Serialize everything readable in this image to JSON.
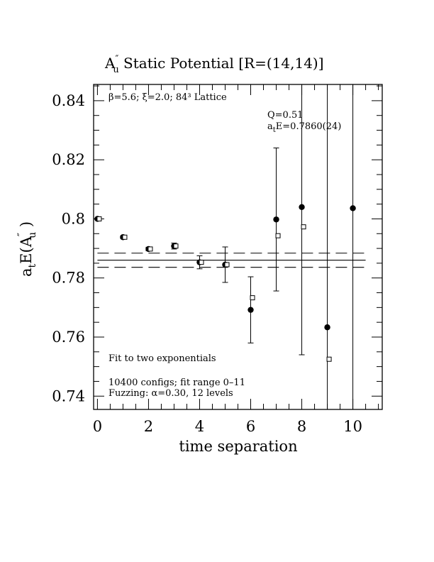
{
  "chart_data": {
    "type": "scatter",
    "title": {
      "base": "A",
      "sup": "″",
      "sub": "u",
      "rest": "  Static Potential [R=(14,14)]"
    },
    "xlabel": "time separation",
    "ylabel": {
      "pre": "a",
      "pre_sub": "t",
      "mid": "E(A",
      "sup": "″",
      "sub": "u",
      "post": " )"
    },
    "xlim": [
      -0.15,
      11.15
    ],
    "ylim": [
      0.7355,
      0.8455
    ],
    "x_ticks": [
      0,
      2,
      4,
      6,
      8,
      10
    ],
    "x_tick_labels": [
      "0",
      "2",
      "4",
      "6",
      "8",
      "10"
    ],
    "y_ticks": [
      0.74,
      0.76,
      0.78,
      0.8,
      0.82,
      0.84
    ],
    "y_tick_labels": [
      "0.74",
      "0.76",
      "0.78",
      "0.8",
      "0.82",
      "0.84"
    ],
    "annotations": {
      "lattice": "β=5.6; ξ=2.0; 84³ Lattice",
      "q_value": "Q=0.51",
      "energy": {
        "pre": "a",
        "sub": "t",
        "post": "E=0.7860(24)"
      },
      "fit_method": "Fit to two exponentials",
      "configs": "10400 configs; fit range 0–11",
      "fuzzing": "Fuzzing: α=0.30, 12 levels"
    },
    "fit": {
      "value": 0.786,
      "error": 0.0024,
      "x_range": [
        0,
        10.5
      ]
    },
    "series": [
      {
        "marker": "filled-circle",
        "points": [
          {
            "x": 0,
            "y": 0.8,
            "err": 0.0002
          },
          {
            "x": 1,
            "y": 0.7938,
            "err": 0.0004
          },
          {
            "x": 2,
            "y": 0.7898,
            "err": 0.0006
          },
          {
            "x": 3,
            "y": 0.7908,
            "err": 0.001
          },
          {
            "x": 4,
            "y": 0.7853,
            "err": 0.0022
          },
          {
            "x": 5,
            "y": 0.7845,
            "err": 0.006
          },
          {
            "x": 6,
            "y": 0.7692,
            "err": 0.0112
          },
          {
            "x": 7,
            "y": 0.7998,
            "err": 0.0242
          },
          {
            "x": 8,
            "y": 0.804,
            "err": 0.05
          },
          {
            "x": 9,
            "y": 0.7633,
            "err": 0.1
          },
          {
            "x": 10,
            "y": 0.8036,
            "err": 0.1
          }
        ]
      },
      {
        "marker": "open-square",
        "points": [
          {
            "x": 0.07,
            "y": 0.8
          },
          {
            "x": 1.07,
            "y": 0.7938
          },
          {
            "x": 2.07,
            "y": 0.7898
          },
          {
            "x": 3.07,
            "y": 0.7908
          },
          {
            "x": 4.07,
            "y": 0.7853
          },
          {
            "x": 5.07,
            "y": 0.7845
          },
          {
            "x": 6.07,
            "y": 0.7733
          },
          {
            "x": 7.07,
            "y": 0.7943
          },
          {
            "x": 8.07,
            "y": 0.7973
          },
          {
            "x": 9.07,
            "y": 0.7525
          }
        ]
      }
    ]
  }
}
